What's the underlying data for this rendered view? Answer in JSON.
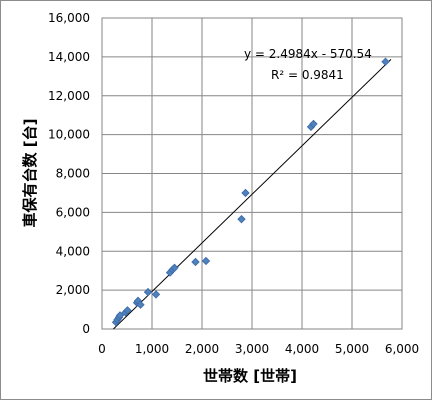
{
  "chart_data": {
    "type": "scatter",
    "xlabel": "世帯数 [世帯]",
    "ylabel": "車保有台数 [台]",
    "xlim": [
      0,
      6000
    ],
    "ylim": [
      0,
      16000
    ],
    "x_ticks": [
      "0",
      "1,000",
      "2,000",
      "3,000",
      "4,000",
      "5,000",
      "6,000"
    ],
    "y_ticks": [
      "0",
      "2,000",
      "4,000",
      "6,000",
      "8,000",
      "10,000",
      "12,000",
      "14,000",
      "16,000"
    ],
    "grid": true,
    "legend": "none",
    "marker_color": "#4f81bd",
    "trendline": {
      "equation": "y = 2.4984x - 570.54",
      "r_squared": "R² = 0.9841",
      "slope": 2.4984,
      "intercept": -570.54
    },
    "points": [
      {
        "x": 280,
        "y": 350
      },
      {
        "x": 310,
        "y": 480
      },
      {
        "x": 340,
        "y": 600
      },
      {
        "x": 360,
        "y": 700
      },
      {
        "x": 470,
        "y": 850
      },
      {
        "x": 510,
        "y": 960
      },
      {
        "x": 700,
        "y": 1350
      },
      {
        "x": 720,
        "y": 1450
      },
      {
        "x": 770,
        "y": 1250
      },
      {
        "x": 920,
        "y": 1900
      },
      {
        "x": 1080,
        "y": 1780
      },
      {
        "x": 1360,
        "y": 2900
      },
      {
        "x": 1410,
        "y": 3050
      },
      {
        "x": 1450,
        "y": 3150
      },
      {
        "x": 1870,
        "y": 3450
      },
      {
        "x": 2080,
        "y": 3500
      },
      {
        "x": 2790,
        "y": 5650
      },
      {
        "x": 2870,
        "y": 7000
      },
      {
        "x": 4180,
        "y": 10400
      },
      {
        "x": 4230,
        "y": 10550
      },
      {
        "x": 5670,
        "y": 13750
      }
    ]
  }
}
